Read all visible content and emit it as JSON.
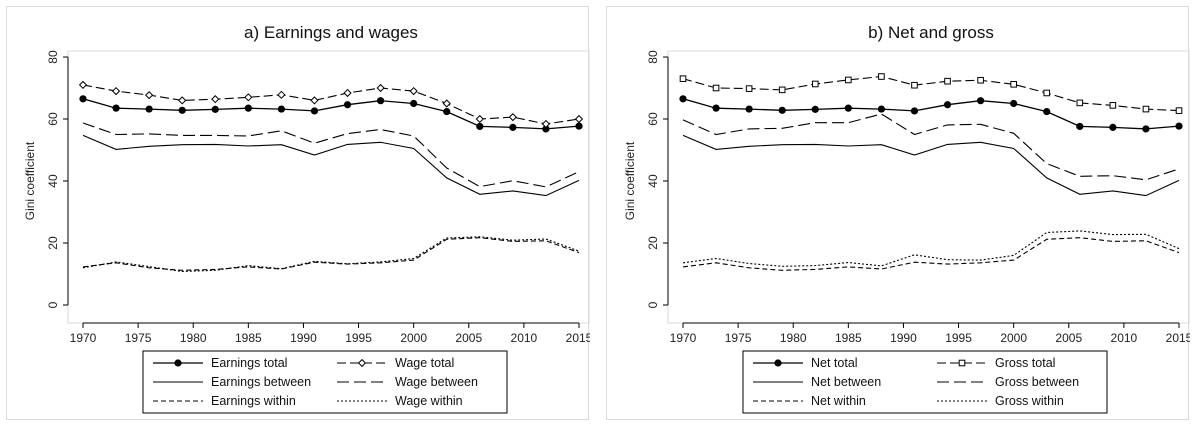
{
  "chart_data": [
    {
      "type": "line",
      "title": "a) Earnings and wages",
      "xlabel": "",
      "ylabel": "Gini coefficient",
      "xlim": [
        1970,
        2015
      ],
      "ylim": [
        0,
        80
      ],
      "xticks": [
        1970,
        1975,
        1980,
        1985,
        1990,
        1995,
        2000,
        2005,
        2010,
        2015
      ],
      "yticks": [
        0,
        20,
        40,
        60,
        80
      ],
      "grid": false,
      "legend_position": "bottom",
      "x": [
        1970,
        1973,
        1976,
        1979,
        1982,
        1985,
        1988,
        1991,
        1994,
        1997,
        2000,
        2003,
        2006,
        2009,
        2012,
        2015
      ],
      "series": [
        {
          "name": "Earnings total",
          "style": "solid-dot",
          "values": [
            66.5,
            63.5,
            63.2,
            62.8,
            63.1,
            63.5,
            63.2,
            62.6,
            64.6,
            65.9,
            65.0,
            62.4,
            57.6,
            57.3,
            56.8,
            57.7
          ]
        },
        {
          "name": "Wage total",
          "style": "dash-diamond",
          "values": [
            71.0,
            69.0,
            67.7,
            66.0,
            66.4,
            67.0,
            67.8,
            66.0,
            68.4,
            70.0,
            69.0,
            65.0,
            60.0,
            60.6,
            58.4,
            60.0
          ]
        },
        {
          "name": "Earnings between",
          "style": "solid",
          "values": [
            54.7,
            50.2,
            51.2,
            51.7,
            51.8,
            51.3,
            51.7,
            48.4,
            51.8,
            52.5,
            50.5,
            41.0,
            35.7,
            36.8,
            35.3,
            40.2
          ]
        },
        {
          "name": "Wage between",
          "style": "longdash",
          "values": [
            58.7,
            55.0,
            55.2,
            54.7,
            54.7,
            54.5,
            56.2,
            52.2,
            55.3,
            56.6,
            54.5,
            44.2,
            38.2,
            40.1,
            38.1,
            43.0
          ]
        },
        {
          "name": "Earnings within",
          "style": "shortdash",
          "values": [
            12.3,
            13.6,
            12.0,
            11.2,
            11.5,
            12.3,
            11.6,
            13.8,
            13.2,
            13.6,
            14.5,
            21.2,
            21.7,
            20.5,
            20.7,
            16.9
          ]
        },
        {
          "name": "Wage within",
          "style": "dot",
          "values": [
            12.0,
            13.9,
            12.4,
            10.8,
            11.2,
            12.7,
            11.7,
            14.1,
            13.3,
            13.9,
            15.0,
            21.6,
            22.0,
            20.9,
            21.3,
            17.4
          ]
        }
      ]
    },
    {
      "type": "line",
      "title": "b) Net and gross",
      "xlabel": "",
      "ylabel": "Gini coefficient",
      "xlim": [
        1970,
        2015
      ],
      "ylim": [
        0,
        80
      ],
      "xticks": [
        1970,
        1975,
        1980,
        1985,
        1990,
        1995,
        2000,
        2005,
        2010,
        2015
      ],
      "yticks": [
        0,
        20,
        40,
        60,
        80
      ],
      "grid": false,
      "legend_position": "bottom",
      "x": [
        1970,
        1973,
        1976,
        1979,
        1982,
        1985,
        1988,
        1991,
        1994,
        1997,
        2000,
        2003,
        2006,
        2009,
        2012,
        2015
      ],
      "series": [
        {
          "name": "Net total",
          "style": "solid-dot",
          "values": [
            66.5,
            63.5,
            63.2,
            62.8,
            63.1,
            63.5,
            63.2,
            62.6,
            64.6,
            65.9,
            65.0,
            62.4,
            57.6,
            57.3,
            56.8,
            57.7
          ]
        },
        {
          "name": "Gross total",
          "style": "dash-square",
          "values": [
            73.0,
            70.0,
            69.8,
            69.4,
            71.3,
            72.6,
            73.7,
            70.9,
            72.2,
            72.5,
            71.2,
            68.4,
            65.2,
            64.4,
            63.2,
            62.7
          ]
        },
        {
          "name": "Net between",
          "style": "solid",
          "values": [
            54.7,
            50.2,
            51.2,
            51.7,
            51.8,
            51.3,
            51.7,
            48.4,
            51.8,
            52.5,
            50.5,
            41.0,
            35.7,
            36.8,
            35.3,
            40.2
          ]
        },
        {
          "name": "Gross between",
          "style": "longdash",
          "values": [
            59.7,
            55.0,
            56.8,
            57.0,
            58.8,
            58.8,
            61.6,
            55.0,
            58.1,
            58.3,
            55.4,
            45.6,
            41.5,
            41.7,
            40.4,
            43.9
          ]
        },
        {
          "name": "Net within",
          "style": "shortdash",
          "values": [
            12.3,
            13.6,
            12.0,
            11.2,
            11.5,
            12.3,
            11.6,
            13.8,
            13.2,
            13.6,
            14.5,
            21.2,
            21.7,
            20.5,
            20.7,
            16.9
          ]
        },
        {
          "name": "Gross within",
          "style": "dot",
          "values": [
            13.6,
            15.0,
            13.4,
            12.5,
            12.7,
            13.7,
            12.6,
            16.2,
            14.6,
            14.5,
            16.0,
            23.4,
            23.9,
            22.7,
            22.8,
            18.2
          ]
        }
      ]
    }
  ]
}
